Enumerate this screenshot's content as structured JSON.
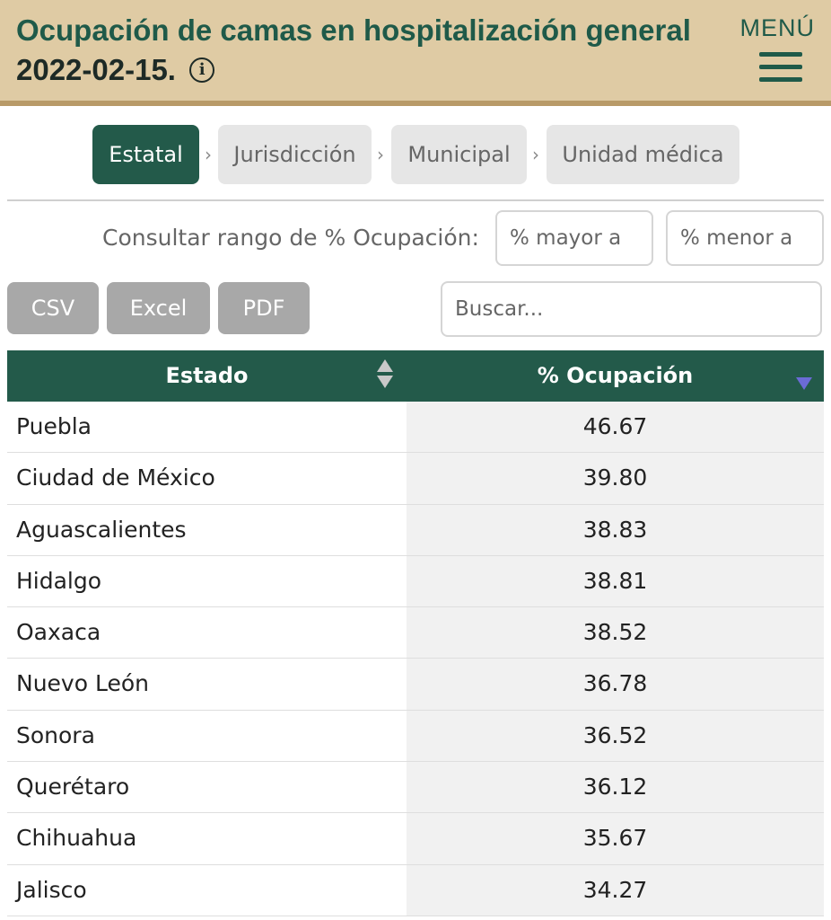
{
  "header": {
    "title_line1": "Ocupación de camas en hospitalización general",
    "title_date": "2022-02-15.",
    "info_icon": "info-circle-icon",
    "menu_label": "MENÚ",
    "menu_icon": "hamburger-menu-icon",
    "colors": {
      "background": "#dfcba4",
      "title": "#1f5a49"
    }
  },
  "breadcrumbs": [
    {
      "label": "Estatal",
      "active": true
    },
    {
      "label": "Jurisdicción",
      "active": false
    },
    {
      "label": "Municipal",
      "active": false
    },
    {
      "label": "Unidad médica",
      "active": false
    }
  ],
  "breadcrumb_separator": "›",
  "range_filter": {
    "label": "Consultar rango de % Ocupación:",
    "min_placeholder": "% mayor a",
    "max_placeholder": "% menor a"
  },
  "export_buttons": {
    "csv": "CSV",
    "excel": "Excel",
    "pdf": "PDF"
  },
  "search": {
    "placeholder": "Buscar..."
  },
  "table": {
    "headers": {
      "state": "Estado",
      "occupancy": "% Ocupación"
    },
    "sort": {
      "state": "none",
      "occupancy": "descending"
    },
    "rows": [
      {
        "state": "Puebla",
        "occupancy": "46.67"
      },
      {
        "state": "Ciudad de México",
        "occupancy": "39.80"
      },
      {
        "state": "Aguascalientes",
        "occupancy": "38.83"
      },
      {
        "state": "Hidalgo",
        "occupancy": "38.81"
      },
      {
        "state": "Oaxaca",
        "occupancy": "38.52"
      },
      {
        "state": "Nuevo León",
        "occupancy": "36.78"
      },
      {
        "state": "Sonora",
        "occupancy": "36.52"
      },
      {
        "state": "Querétaro",
        "occupancy": "36.12"
      },
      {
        "state": "Chihuahua",
        "occupancy": "35.67"
      },
      {
        "state": "Jalisco",
        "occupancy": "34.27"
      }
    ]
  },
  "colors": {
    "accent": "#235a4a",
    "button": "#a8a8a8",
    "sort_active": "#6b6bd6"
  }
}
